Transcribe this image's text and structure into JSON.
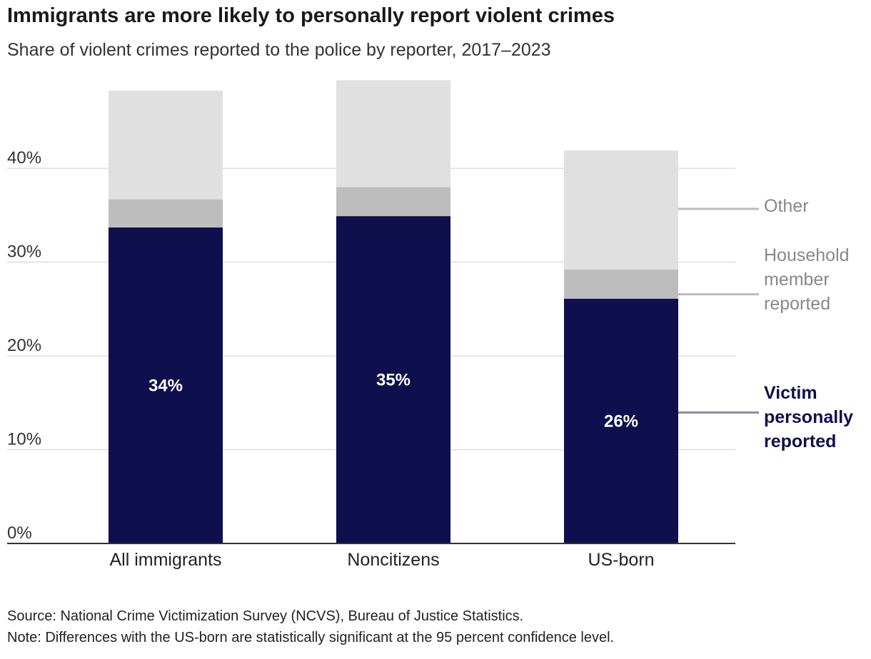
{
  "title": "Immigrants are more likely to personally report violent crimes",
  "subtitle": "Share of violent crimes reported to the police by reporter, 2017–2023",
  "source": "Source: National Crime Victimization Survey (NCVS), Bureau of Justice Statistics.",
  "note": "Note: Differences with the US-born are statistically significant at the 95 percent confidence level.",
  "colors": {
    "victim": "#0f0f4d",
    "household": "#bdbdbd",
    "other": "#e0e0e0",
    "grid": "#dddddd",
    "axis": "#333333",
    "legend_other": "#888888",
    "legend_household": "#888888",
    "legend_victim": "#0f0f4d",
    "leader_victim": "#8a8aa8",
    "leader_gray": "#bbbbbb"
  },
  "chart_data": {
    "type": "bar",
    "stacked": true,
    "categories": [
      "All immigrants",
      "Noncitizens",
      "US-born"
    ],
    "series": [
      {
        "key": "victim",
        "name": "Victim personally reported",
        "values": [
          33.7,
          34.9,
          26.1
        ],
        "labels": [
          "34%",
          "35%",
          "26%"
        ]
      },
      {
        "key": "household",
        "name": "Household member reported",
        "values": [
          3.0,
          3.1,
          3.1
        ]
      },
      {
        "key": "other",
        "name": "Other",
        "values": [
          11.6,
          11.4,
          12.7
        ]
      }
    ],
    "ylim": [
      0,
      49
    ],
    "yticks": [
      0,
      10,
      20,
      30,
      40
    ],
    "ytick_labels": [
      "0%",
      "10%",
      "20%",
      "30%",
      "40%"
    ],
    "legend": [
      {
        "key": "other",
        "lines": [
          "Other"
        ]
      },
      {
        "key": "household",
        "lines": [
          "Household",
          "member",
          "reported"
        ]
      },
      {
        "key": "victim",
        "lines": [
          "Victim",
          "personally",
          "reported"
        ]
      }
    ],
    "xlabel": "",
    "ylabel": "",
    "grid": true
  }
}
